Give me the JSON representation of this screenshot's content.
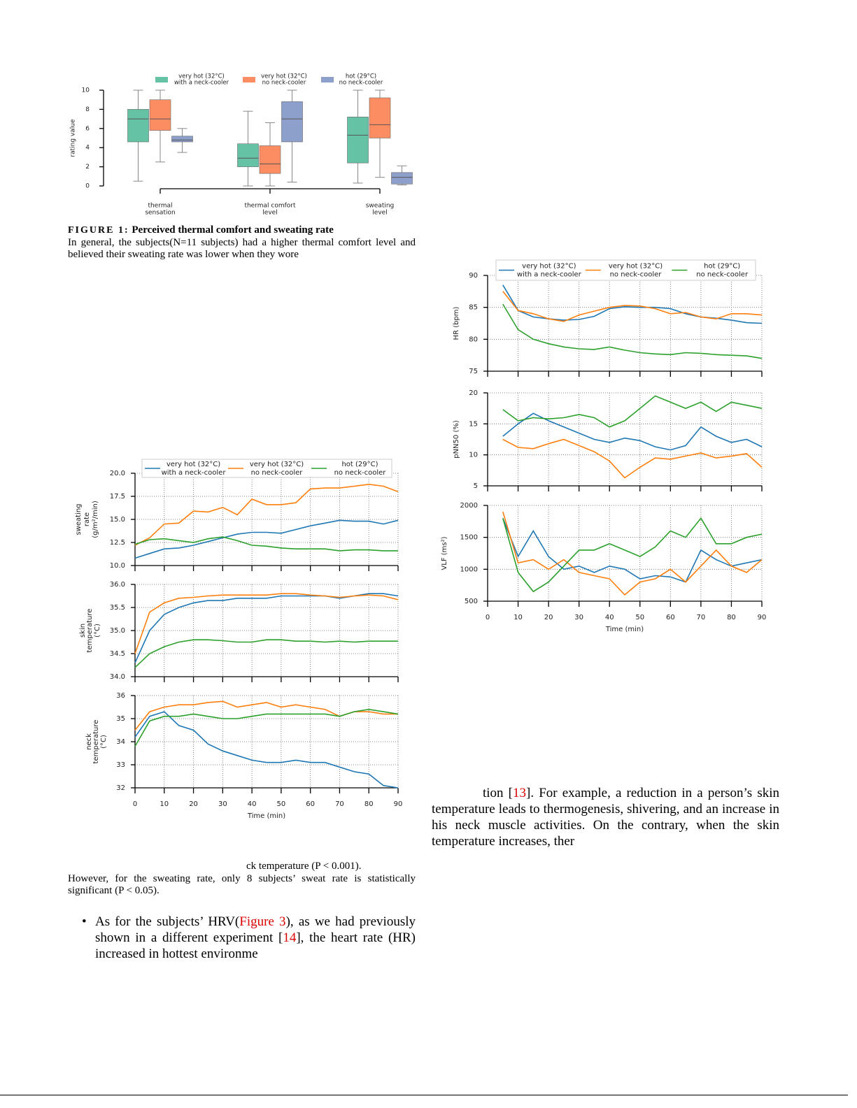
{
  "chart_data": [
    {
      "type": "box",
      "ylabel": "rating value",
      "categories": [
        [
          "thermal",
          "sensation"
        ],
        [
          "thermal comfort",
          "level"
        ],
        [
          "sweating",
          "level"
        ]
      ],
      "ylim": [
        0,
        10
      ],
      "yticks": [
        0,
        2,
        4,
        6,
        8,
        10
      ],
      "series": [
        {
          "name": [
            "very hot (32°C)",
            "with a neck-cooler"
          ],
          "color": "#66c2a5",
          "min": [
            0.5,
            0,
            0.3
          ],
          "q1": [
            4.6,
            2,
            2.4
          ],
          "median": [
            7,
            2.9,
            5.3
          ],
          "q3": [
            8,
            4.4,
            7.2
          ],
          "max": [
            10,
            7.8,
            10
          ]
        },
        {
          "name": [
            "very hot (32°C)",
            "no neck-cooler"
          ],
          "color": "#fc8d62",
          "min": [
            2.5,
            0,
            0.9
          ],
          "q1": [
            5.8,
            1.3,
            5
          ],
          "median": [
            7,
            2.3,
            6.4
          ],
          "q3": [
            9,
            4.2,
            9.2
          ],
          "max": [
            10,
            6.6,
            10
          ]
        },
        {
          "name": [
            "hot (29°C)",
            "no neck-cooler"
          ],
          "color": "#8da0cb",
          "min": [
            3.5,
            0.4,
            0.1
          ],
          "q1": [
            4.6,
            4.6,
            0.2
          ],
          "median": [
            4.8,
            7,
            0.9
          ],
          "q3": [
            5.2,
            8.8,
            1.4
          ],
          "max": [
            6,
            10,
            2.1
          ]
        }
      ]
    },
    {
      "type": "line",
      "ylabel": [
        "sweating",
        "rate",
        "(g/m²/min)"
      ],
      "x": [
        0,
        5,
        10,
        15,
        20,
        25,
        30,
        35,
        40,
        45,
        50,
        55,
        60,
        65,
        70,
        75,
        80,
        85,
        90
      ],
      "xlim": [
        0,
        90
      ],
      "ylim": [
        10,
        20
      ],
      "yticks": [
        {
          "value": 10,
          "label": "10.0"
        },
        12.5,
        {
          "value": 15,
          "label": "15.0"
        },
        17.5,
        {
          "value": 20,
          "label": "20.0"
        }
      ],
      "grid": true,
      "series": [
        {
          "name": [
            "very hot (32°C)",
            "with a neck-cooler"
          ],
          "color": "#1f77b4",
          "values": [
            10.8,
            11.3,
            11.8,
            11.9,
            12.2,
            12.6,
            13.0,
            13.4,
            13.6,
            13.6,
            13.5,
            13.9,
            14.3,
            14.6,
            14.9,
            14.8,
            14.8,
            14.5,
            14.9
          ]
        },
        {
          "name": [
            "very hot (32°C)",
            "no neck-cooler"
          ],
          "color": "#ff7f0e",
          "values": [
            12.2,
            13.0,
            14.5,
            14.6,
            15.9,
            15.8,
            16.3,
            15.5,
            17.2,
            16.6,
            16.6,
            16.8,
            18.3,
            18.4,
            18.4,
            18.6,
            18.8,
            18.6,
            18.0
          ]
        },
        {
          "name": [
            "hot (29°C)",
            "no neck-cooler"
          ],
          "color": "#2ca02c",
          "values": [
            12.3,
            12.8,
            12.9,
            12.7,
            12.5,
            12.9,
            13.1,
            12.7,
            12.2,
            12.1,
            11.9,
            11.8,
            11.8,
            11.8,
            11.6,
            11.7,
            11.7,
            11.6,
            11.6
          ]
        }
      ]
    },
    {
      "type": "line",
      "ylabel": [
        "skin",
        "temperature",
        "(°C)"
      ],
      "x": [
        0,
        5,
        10,
        15,
        20,
        25,
        30,
        35,
        40,
        45,
        50,
        55,
        60,
        65,
        70,
        75,
        80,
        85,
        90
      ],
      "xlim": [
        0,
        90
      ],
      "ylim": [
        34,
        36
      ],
      "yticks": [
        {
          "value": 34,
          "label": "34.0"
        },
        34.5,
        {
          "value": 35,
          "label": "35.0"
        },
        35.5,
        {
          "value": 36,
          "label": "36.0"
        }
      ],
      "grid": true,
      "series": [
        {
          "color": "#1f77b4",
          "values": [
            34.3,
            35.0,
            35.35,
            35.5,
            35.6,
            35.65,
            35.65,
            35.7,
            35.7,
            35.7,
            35.75,
            35.75,
            35.75,
            35.75,
            35.7,
            35.75,
            35.8,
            35.8,
            35.75
          ]
        },
        {
          "color": "#ff7f0e",
          "values": [
            34.5,
            35.4,
            35.6,
            35.7,
            35.72,
            35.75,
            35.77,
            35.77,
            35.77,
            35.77,
            35.8,
            35.8,
            35.77,
            35.75,
            35.72,
            35.75,
            35.77,
            35.75,
            35.67
          ]
        },
        {
          "color": "#2ca02c",
          "values": [
            34.2,
            34.5,
            34.65,
            34.75,
            34.8,
            34.8,
            34.78,
            34.75,
            34.75,
            34.8,
            34.8,
            34.77,
            34.77,
            34.75,
            34.77,
            34.75,
            34.77,
            34.77,
            34.77
          ]
        }
      ]
    },
    {
      "type": "line",
      "ylabel": [
        "neck",
        "temperature",
        "(°C)"
      ],
      "x": [
        0,
        5,
        10,
        15,
        20,
        25,
        30,
        35,
        40,
        45,
        50,
        55,
        60,
        65,
        70,
        75,
        80,
        85,
        90
      ],
      "xlim": [
        0,
        90
      ],
      "ylim": [
        32,
        36
      ],
      "yticks": [
        32,
        33,
        34,
        35,
        36
      ],
      "grid": true,
      "xticks": [
        0,
        10,
        20,
        30,
        40,
        50,
        60,
        70,
        80,
        90
      ],
      "xlabel": "Time (min)",
      "series": [
        {
          "color": "#1f77b4",
          "values": [
            34.2,
            35.1,
            35.3,
            34.7,
            34.5,
            33.9,
            33.6,
            33.4,
            33.2,
            33.1,
            33.1,
            33.2,
            33.1,
            33.1,
            32.9,
            32.7,
            32.6,
            32.1,
            32.0
          ]
        },
        {
          "color": "#ff7f0e",
          "values": [
            34.5,
            35.3,
            35.5,
            35.6,
            35.6,
            35.7,
            35.75,
            35.5,
            35.6,
            35.7,
            35.5,
            35.6,
            35.5,
            35.4,
            35.1,
            35.3,
            35.3,
            35.2,
            35.2
          ]
        },
        {
          "color": "#2ca02c",
          "values": [
            33.8,
            34.9,
            35.1,
            35.1,
            35.2,
            35.1,
            35.0,
            35.0,
            35.1,
            35.2,
            35.2,
            35.2,
            35.2,
            35.2,
            35.1,
            35.3,
            35.4,
            35.3,
            35.2
          ]
        }
      ]
    },
    {
      "type": "line",
      "ylabel": [
        "HR (bpm)"
      ],
      "x": [
        5,
        10,
        15,
        20,
        25,
        30,
        35,
        40,
        45,
        50,
        55,
        60,
        65,
        70,
        75,
        80,
        85,
        90
      ],
      "xlim": [
        0,
        90
      ],
      "ylim": [
        75,
        90
      ],
      "yticks": [
        75,
        80,
        85,
        90
      ],
      "grid": true,
      "series": [
        {
          "name": [
            "very hot (32°C)",
            "with a neck-cooler"
          ],
          "color": "#1f77b4",
          "values": [
            88.5,
            84.5,
            83.5,
            83.2,
            83.0,
            83.1,
            83.6,
            84.8,
            85.1,
            85.0,
            85.0,
            84.8,
            84.0,
            83.5,
            83.3,
            83.0,
            82.6,
            82.5
          ]
        },
        {
          "name": [
            "very hot (32°C)",
            "no neck-cooler"
          ],
          "color": "#ff7f0e",
          "values": [
            87.5,
            84.5,
            84.0,
            83.2,
            82.8,
            83.8,
            84.4,
            85.0,
            85.3,
            85.2,
            84.8,
            84.0,
            84.2,
            83.5,
            83.2,
            84.0,
            84.0,
            83.8
          ]
        },
        {
          "name": [
            "hot (29°C)",
            "no neck-cooler"
          ],
          "color": "#2ca02c",
          "values": [
            85.5,
            81.5,
            80.0,
            79.3,
            78.8,
            78.5,
            78.4,
            78.8,
            78.3,
            77.9,
            77.7,
            77.6,
            77.9,
            77.8,
            77.6,
            77.5,
            77.4,
            77.0
          ]
        }
      ]
    },
    {
      "type": "line",
      "ylabel": [
        "pNN50 (%)"
      ],
      "x": [
        5,
        10,
        15,
        20,
        25,
        30,
        35,
        40,
        45,
        50,
        55,
        60,
        65,
        70,
        75,
        80,
        85,
        90
      ],
      "xlim": [
        0,
        90
      ],
      "ylim": [
        5,
        20
      ],
      "yticks": [
        5,
        10,
        15,
        20
      ],
      "grid": true,
      "series": [
        {
          "color": "#1f77b4",
          "values": [
            13,
            15,
            16.7,
            15.5,
            14.5,
            13.5,
            12.5,
            12.0,
            12.7,
            12.3,
            11.3,
            10.8,
            11.5,
            14.5,
            13.0,
            12.0,
            12.5,
            11.3
          ]
        },
        {
          "color": "#ff7f0e",
          "values": [
            12.5,
            11.2,
            11.0,
            11.8,
            12.5,
            11.5,
            10.5,
            9.0,
            6.3,
            8.0,
            9.5,
            9.3,
            9.8,
            10.3,
            9.5,
            9.8,
            10.2,
            8.0
          ]
        },
        {
          "color": "#2ca02c",
          "values": [
            17.3,
            15.5,
            16.0,
            15.8,
            16.0,
            16.5,
            16.0,
            14.5,
            15.5,
            17.5,
            19.5,
            18.5,
            17.5,
            18.5,
            17.0,
            18.5,
            18.0,
            17.5
          ]
        }
      ]
    },
    {
      "type": "line",
      "ylabel": [
        "VLF (ms²)"
      ],
      "x": [
        5,
        10,
        15,
        20,
        25,
        30,
        35,
        40,
        45,
        50,
        55,
        60,
        65,
        70,
        75,
        80,
        85,
        90
      ],
      "xlim": [
        0,
        90
      ],
      "ylim": [
        500,
        2000
      ],
      "yticks": [
        500,
        1000,
        1500,
        2000
      ],
      "grid": true,
      "xticks": [
        0,
        10,
        20,
        30,
        40,
        50,
        60,
        70,
        80,
        90
      ],
      "xlabel": "Time (min)",
      "series": [
        {
          "color": "#1f77b4",
          "values": [
            1800,
            1200,
            1600,
            1200,
            1000,
            1050,
            950,
            1050,
            1000,
            850,
            900,
            880,
            800,
            1300,
            1150,
            1050,
            1100,
            1150
          ]
        },
        {
          "color": "#ff7f0e",
          "values": [
            1900,
            1100,
            1150,
            1000,
            1150,
            950,
            900,
            850,
            600,
            800,
            850,
            1000,
            800,
            1050,
            1300,
            1050,
            950,
            1150
          ]
        },
        {
          "color": "#2ca02c",
          "values": [
            1800,
            950,
            650,
            800,
            1050,
            1300,
            1300,
            1400,
            1300,
            1200,
            1350,
            1600,
            1500,
            1800,
            1400,
            1400,
            1500,
            1550
          ]
        }
      ]
    }
  ],
  "figure_1": {
    "label": "FIGURE 1:",
    "title": "Perceived thermal comfort and sweating rate",
    "text": "In general, the subjects(N=11 subjects) had a higher thermal comfort level and believed their sweating rate was lower when they wore"
  },
  "left_text": {
    "fragment": "ck temperature (P < 0.001).",
    "paragraph": "However, for the sweating rate, only 8 subjects’ sweat rate is statistically significant (P < 0.05).",
    "bullet": [
      "As for the subjects’ HRV(",
      "Figure 3",
      "), as we had previously shown in a different experiment [",
      "14",
      "], the heart rate (HR) increased in hottest environme"
    ]
  },
  "right_text": [
    "tion [",
    "13",
    "]. For example, a reduction in a person’s skin temperature leads to thermogenesis, shivering, and an increase in his neck muscle activities. On the contrary, when the skin temperature increases, ther"
  ]
}
